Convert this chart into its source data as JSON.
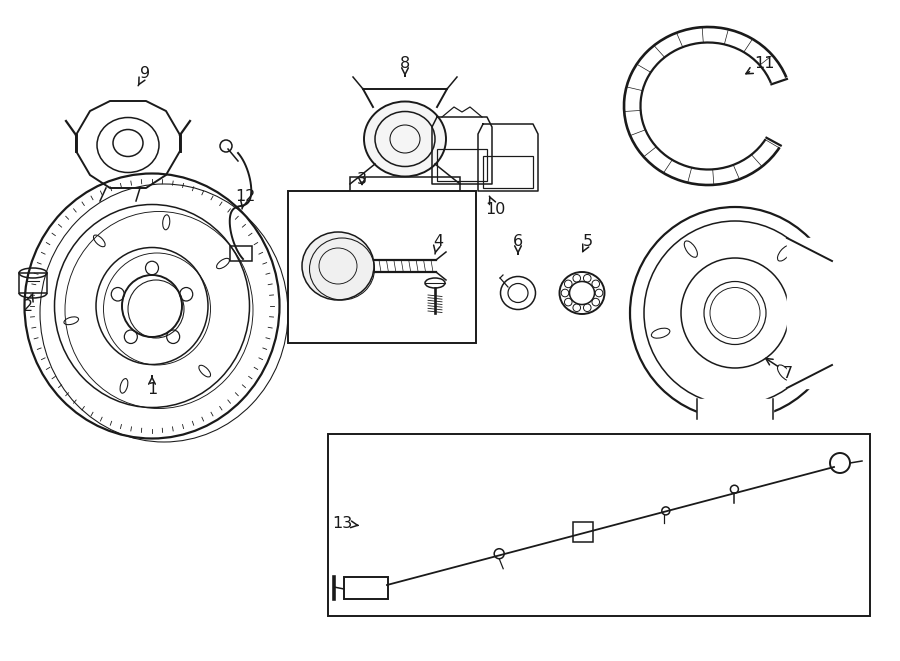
{
  "bg_color": "#ffffff",
  "line_color": "#1a1a1a",
  "lw": 1.1,
  "fig_width": 9.0,
  "fig_height": 6.61
}
